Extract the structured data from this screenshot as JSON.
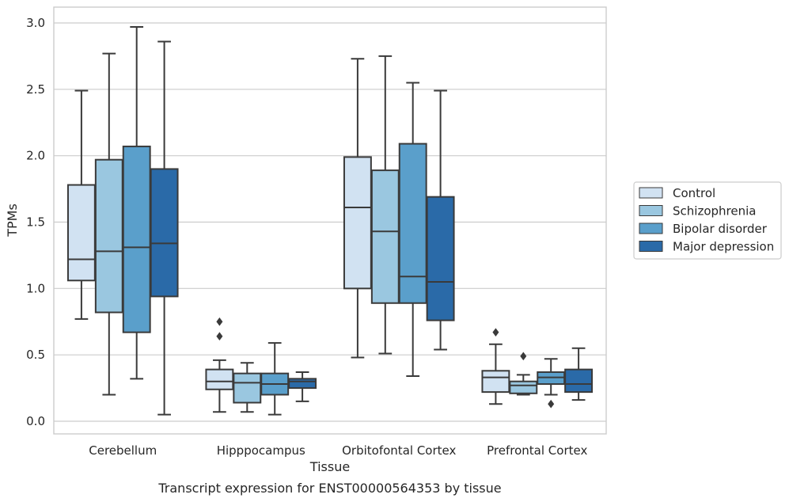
{
  "chart_data": {
    "type": "box",
    "caption": "Transcript expression for ENST00000564353 by tissue",
    "xlabel": "Tissue",
    "ylabel": "TPMs",
    "ylim": [
      -0.08,
      3.12
    ],
    "yticks": [
      "0.0",
      "0.5",
      "1.0",
      "1.5",
      "2.0",
      "2.5",
      "3.0"
    ],
    "grid": "horizontal",
    "legend_position": "right",
    "categories": [
      "Cerebellum",
      "Hipppocampus",
      "Orbitofontal Cortex",
      "Prefrontal Cortex"
    ],
    "series": [
      {
        "name": "Control",
        "color": "#d1e2f2",
        "boxes": [
          {
            "whislo": 0.77,
            "q1": 1.06,
            "med": 1.22,
            "q3": 1.78,
            "whishi": 2.49,
            "fliers": []
          },
          {
            "whislo": 0.07,
            "q1": 0.24,
            "med": 0.3,
            "q3": 0.39,
            "whishi": 0.46,
            "fliers": [
              0.64,
              0.75
            ]
          },
          {
            "whislo": 0.48,
            "q1": 1.0,
            "med": 1.61,
            "q3": 1.99,
            "whishi": 2.73,
            "fliers": []
          },
          {
            "whislo": 0.13,
            "q1": 0.22,
            "med": 0.33,
            "q3": 0.38,
            "whishi": 0.58,
            "fliers": [
              0.67
            ]
          }
        ]
      },
      {
        "name": "Schizophrenia",
        "color": "#9ac7e0",
        "boxes": [
          {
            "whislo": 0.2,
            "q1": 0.82,
            "med": 1.28,
            "q3": 1.97,
            "whishi": 2.77,
            "fliers": []
          },
          {
            "whislo": 0.07,
            "q1": 0.14,
            "med": 0.29,
            "q3": 0.36,
            "whishi": 0.44,
            "fliers": []
          },
          {
            "whislo": 0.51,
            "q1": 0.89,
            "med": 1.43,
            "q3": 1.89,
            "whishi": 2.75,
            "fliers": []
          },
          {
            "whislo": 0.2,
            "q1": 0.21,
            "med": 0.27,
            "q3": 0.3,
            "whishi": 0.35,
            "fliers": [
              0.49
            ]
          }
        ]
      },
      {
        "name": "Bipolar disorder",
        "color": "#5a9fcb",
        "boxes": [
          {
            "whislo": 0.32,
            "q1": 0.67,
            "med": 1.31,
            "q3": 2.07,
            "whishi": 2.97,
            "fliers": []
          },
          {
            "whislo": 0.05,
            "q1": 0.2,
            "med": 0.28,
            "q3": 0.36,
            "whishi": 0.59,
            "fliers": []
          },
          {
            "whislo": 0.34,
            "q1": 0.89,
            "med": 1.09,
            "q3": 2.09,
            "whishi": 2.55,
            "fliers": []
          },
          {
            "whislo": 0.2,
            "q1": 0.28,
            "med": 0.33,
            "q3": 0.37,
            "whishi": 0.47,
            "fliers": [
              0.13
            ]
          }
        ]
      },
      {
        "name": "Major depression",
        "color": "#2a6aa8",
        "boxes": [
          {
            "whislo": 0.05,
            "q1": 0.94,
            "med": 1.34,
            "q3": 1.9,
            "whishi": 2.86,
            "fliers": []
          },
          {
            "whislo": 0.15,
            "q1": 0.25,
            "med": 0.3,
            "q3": 0.32,
            "whishi": 0.37,
            "fliers": []
          },
          {
            "whislo": 0.54,
            "q1": 0.76,
            "med": 1.05,
            "q3": 1.69,
            "whishi": 2.49,
            "fliers": []
          },
          {
            "whislo": 0.16,
            "q1": 0.22,
            "med": 0.28,
            "q3": 0.39,
            "whishi": 0.55,
            "fliers": []
          }
        ]
      }
    ]
  },
  "colors": {
    "grid": "#cccccc",
    "frame": "#cccccc",
    "box_edge": "#3a3a3a",
    "text": "#262626"
  }
}
